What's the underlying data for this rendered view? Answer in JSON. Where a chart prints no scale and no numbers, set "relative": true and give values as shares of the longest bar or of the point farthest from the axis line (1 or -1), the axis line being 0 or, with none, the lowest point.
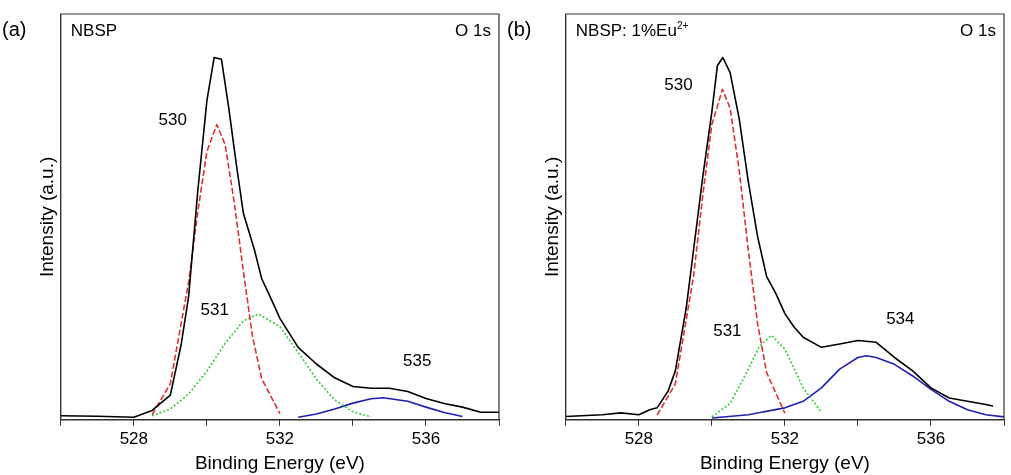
{
  "chart_data": [
    {
      "type": "line",
      "title": "(a)",
      "subtitle": "NBSP",
      "xlabel": "Binding Energy (eV)",
      "ylabel": "Intensity (a.u.)",
      "relative": true,
      "xlim": [
        526,
        538
      ],
      "xticks": [
        {
          "value": 526,
          "label": null
        },
        528,
        {
          "value": 530,
          "label": null
        },
        532,
        {
          "value": 534,
          "label": null
        },
        536,
        {
          "value": 538,
          "label": null
        }
      ],
      "grid": false,
      "legend": false,
      "marker": "none",
      "annotations": [
        "O 1s",
        {
          "text": "530",
          "x": 530.27,
          "y": 0.815
        },
        {
          "text": "531",
          "x": 531.42,
          "y": 0.292
        },
        {
          "text": "535",
          "x": 534.83,
          "y": 0.061
        }
      ],
      "series": [
        {
          "color": "#000000",
          "line_style": "solid",
          "x": [
            526,
            527,
            528,
            528.5,
            529,
            529.3,
            529.5,
            529.75,
            530,
            530.2,
            530.4,
            530.6,
            530.8,
            531,
            531.3,
            531.5,
            531.8,
            532,
            532.5,
            533,
            533.5,
            534,
            534.5,
            535,
            535.5,
            536,
            536.5,
            537,
            537.5,
            538
          ],
          "values": [
            0.011,
            0.01,
            0.007,
            0.026,
            0.068,
            0.21,
            0.34,
            0.63,
            0.88,
            1.0,
            0.995,
            0.86,
            0.71,
            0.57,
            0.47,
            0.39,
            0.325,
            0.28,
            0.2,
            0.154,
            0.116,
            0.092,
            0.087,
            0.087,
            0.078,
            0.059,
            0.045,
            0.035,
            0.021,
            0.021
          ]
        },
        {
          "color": "#e03030",
          "line_style": "dashed",
          "x": [
            528.5,
            529,
            529.5,
            529.75,
            530,
            530.27,
            530.5,
            530.75,
            531,
            531.25,
            531.5,
            532
          ],
          "values": [
            0.014,
            0.1,
            0.38,
            0.573,
            0.74,
            0.815,
            0.76,
            0.6,
            0.41,
            0.23,
            0.114,
            0.017
          ]
        },
        {
          "color": "#33cc33",
          "line_style": "dotted",
          "x": [
            528.5,
            529,
            529.5,
            530,
            530.5,
            531,
            531.42,
            532,
            532.5,
            533,
            533.5,
            534,
            534.5
          ],
          "values": [
            0.011,
            0.03,
            0.071,
            0.134,
            0.211,
            0.273,
            0.292,
            0.257,
            0.186,
            0.112,
            0.055,
            0.022,
            0.008
          ]
        },
        {
          "color": "#2020b0",
          "line_style": "solid",
          "x": [
            532.5,
            533,
            533.5,
            534,
            534.5,
            534.83,
            535.5,
            536,
            536.5,
            537
          ],
          "values": [
            0.007,
            0.016,
            0.03,
            0.046,
            0.058,
            0.061,
            0.051,
            0.035,
            0.02,
            0.009
          ]
        }
      ]
    },
    {
      "type": "line",
      "title": "(b)",
      "subtitle": "NBSP: 1%Eu$^{2+}$",
      "xlabel": "Binding Energy (eV)",
      "ylabel": "Intensity (a.u.)",
      "relative": true,
      "xlim": [
        526,
        538
      ],
      "xticks": [
        {
          "value": 526,
          "label": null
        },
        528,
        {
          "value": 530,
          "label": null
        },
        532,
        {
          "value": 534,
          "label": null
        },
        536,
        {
          "value": 538,
          "label": null
        }
      ],
      "grid": false,
      "legend": false,
      "marker": "none",
      "annotations": [
        "O 1s",
        {
          "text": "530",
          "x": 530.29,
          "y": 0.912
        },
        {
          "text": "531",
          "x": 531.63,
          "y": 0.233
        },
        {
          "text": "534",
          "x": 534.23,
          "y": 0.177
        }
      ],
      "series": [
        {
          "color": "#000000",
          "line_style": "solid",
          "x": [
            526,
            527,
            527.5,
            528,
            528.3,
            528.5,
            528.8,
            529,
            529.3,
            529.5,
            529.75,
            530,
            530.15,
            530.3,
            530.5,
            530.75,
            531,
            531.25,
            531.5,
            531.75,
            532,
            532.25,
            532.5,
            533,
            533.5,
            534,
            534.5,
            535,
            535.5,
            536,
            536.5,
            537,
            537.5,
            537.7
          ],
          "values": [
            0.009,
            0.014,
            0.019,
            0.014,
            0.028,
            0.033,
            0.079,
            0.135,
            0.31,
            0.47,
            0.67,
            0.85,
            0.977,
            1.0,
            0.958,
            0.83,
            0.656,
            0.507,
            0.395,
            0.349,
            0.293,
            0.256,
            0.228,
            0.2,
            0.209,
            0.219,
            0.214,
            0.172,
            0.135,
            0.088,
            0.06,
            0.051,
            0.042,
            0.038
          ]
        },
        {
          "color": "#e03030",
          "line_style": "dashed",
          "x": [
            528.5,
            529,
            529.5,
            529.75,
            530,
            530.29,
            530.5,
            530.75,
            531,
            531.25,
            531.5,
            532
          ],
          "values": [
            0.013,
            0.099,
            0.397,
            0.618,
            0.815,
            0.912,
            0.86,
            0.688,
            0.466,
            0.267,
            0.13,
            0.018
          ]
        },
        {
          "color": "#33cc33",
          "line_style": "dotted",
          "x": [
            530,
            530.5,
            531,
            531.3,
            531.63,
            532,
            532.5,
            533
          ],
          "values": [
            0.008,
            0.045,
            0.14,
            0.203,
            0.233,
            0.195,
            0.088,
            0.021
          ]
        },
        {
          "color": "#2020b0",
          "line_style": "solid",
          "x": [
            530,
            531,
            532,
            532.5,
            533,
            533.5,
            534,
            534.23,
            534.5,
            535,
            535.5,
            536,
            536.5,
            537,
            537.5,
            538
          ],
          "values": [
            0.005,
            0.014,
            0.033,
            0.051,
            0.088,
            0.14,
            0.172,
            0.177,
            0.172,
            0.153,
            0.121,
            0.084,
            0.051,
            0.028,
            0.014,
            0.008
          ]
        }
      ]
    }
  ]
}
